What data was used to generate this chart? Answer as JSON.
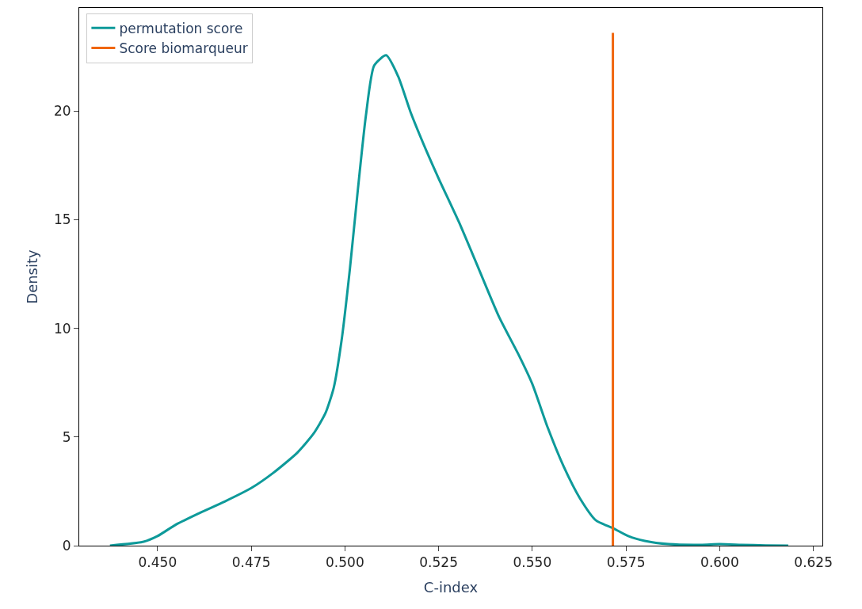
{
  "chart_data": {
    "type": "line",
    "xlabel": "C-index",
    "ylabel": "Density",
    "xlim": [
      0.4291,
      0.6274
    ],
    "xticks": [
      {
        "value": 0.45,
        "label": "0.450"
      },
      {
        "value": 0.475,
        "label": "0.475"
      },
      {
        "value": 0.5,
        "label": "0.500"
      },
      {
        "value": 0.525,
        "label": "0.525"
      },
      {
        "value": 0.55,
        "label": "0.550"
      },
      {
        "value": 0.575,
        "label": "0.575"
      },
      {
        "value": 0.6,
        "label": "0.600"
      },
      {
        "value": 0.625,
        "label": "0.625"
      }
    ],
    "ylim": [
      0,
      24.75
    ],
    "yticks": [
      0,
      5,
      10,
      15,
      20
    ],
    "legend": "top left",
    "series": [
      {
        "name": "permutation score",
        "color": "#0e9a9a",
        "x": [
          0.4373,
          0.4463,
          0.45,
          0.455,
          0.4614,
          0.4679,
          0.475,
          0.4808,
          0.4873,
          0.4916,
          0.4948,
          0.497,
          0.4991,
          0.5013,
          0.5034,
          0.5056,
          0.5078,
          0.511,
          0.5142,
          0.5175,
          0.5218,
          0.525,
          0.5304,
          0.5358,
          0.5412,
          0.5466,
          0.55,
          0.5541,
          0.5584,
          0.5627,
          0.567,
          0.5716,
          0.5756,
          0.58,
          0.5864,
          0.595,
          0.6,
          0.6058,
          0.6123,
          0.6183
        ],
        "values": [
          0,
          0.18,
          0.44,
          0.98,
          1.52,
          2.03,
          2.65,
          3.34,
          4.28,
          5.15,
          6.1,
          7.26,
          9.44,
          12.7,
          16.3,
          19.8,
          22.1,
          22.57,
          21.6,
          19.96,
          18.15,
          16.9,
          14.9,
          12.7,
          10.5,
          8.7,
          7.44,
          5.44,
          3.63,
          2.18,
          1.16,
          0.8,
          0.44,
          0.22,
          0.07,
          0.04,
          0.07,
          0.04,
          0.01,
          0
        ]
      },
      {
        "name": "Score biomarqueur",
        "color": "#f0660f",
        "x": [
          0.5715,
          0.5715
        ],
        "values": [
          0,
          23.6
        ]
      }
    ]
  }
}
